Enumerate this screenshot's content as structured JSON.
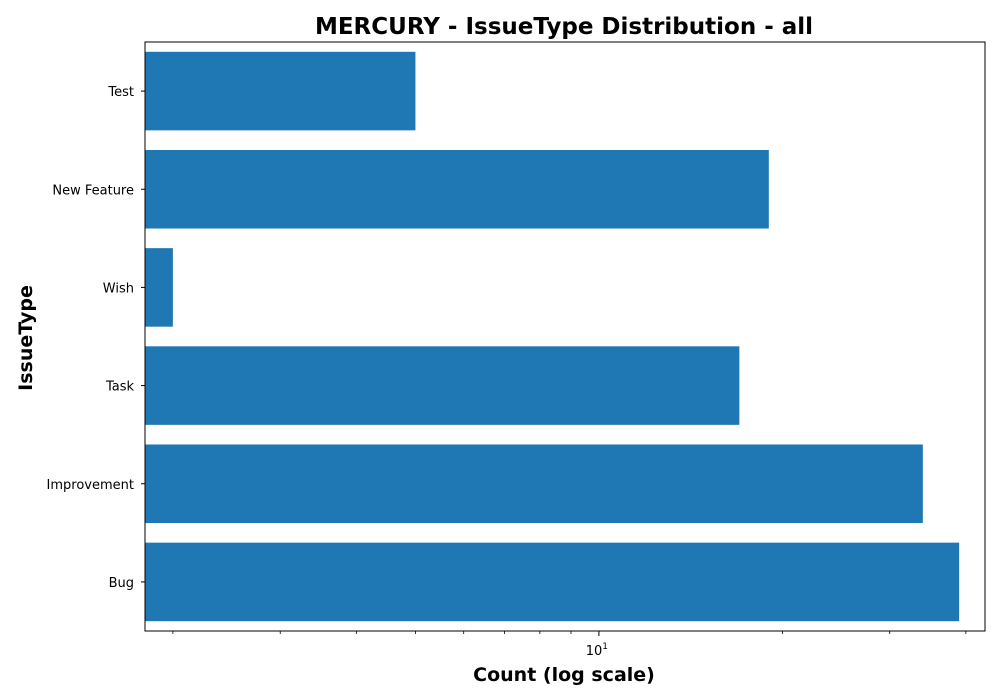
{
  "chart_data": {
    "type": "bar",
    "orientation": "horizontal",
    "title": "MERCURY - IssueType Distribution - all",
    "xlabel": "Count (log scale)",
    "ylabel": "IssueType",
    "xscale": "log",
    "xlim": [
      1.8,
      43
    ],
    "x_ticks": [
      {
        "value": 10,
        "base": "10",
        "exp": "1"
      }
    ],
    "categories": [
      "Bug",
      "Improvement",
      "Task",
      "Wish",
      "New Feature",
      "Test"
    ],
    "values": [
      39,
      34,
      17,
      2,
      19,
      5
    ],
    "grid": false,
    "legend": "none",
    "colors": {
      "bar": "#1f77b4"
    }
  }
}
